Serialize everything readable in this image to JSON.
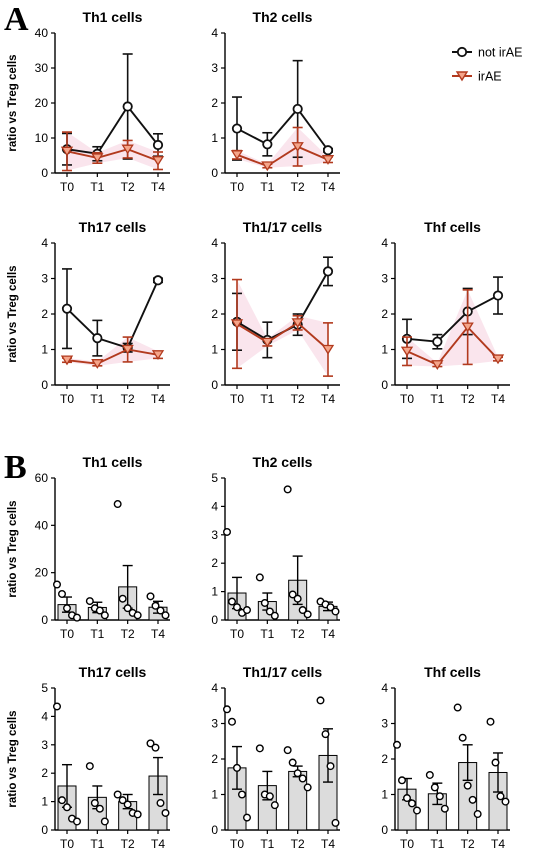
{
  "panels": {
    "A": "A",
    "B": "B"
  },
  "legend": {
    "series": [
      {
        "name": "not irAE",
        "color": "#111111",
        "marker": "circle"
      },
      {
        "name": "irAE",
        "color": "#b23a1e",
        "marker": "triangle-down"
      }
    ]
  },
  "colors": {
    "not_irAE": "#111111",
    "irAE": "#b23a1e",
    "irAE_band": "#f3c6d6",
    "bar_fill": "#dcdcdc"
  },
  "chart_data": [
    {
      "panel": "A",
      "type": "line",
      "title": "Th1 cells",
      "ylabel": "ratio vs Treg cells",
      "categories": [
        "T0",
        "T1",
        "T2",
        "T4"
      ],
      "ylim": [
        0,
        40
      ],
      "yticks": [
        0,
        10,
        20,
        30,
        40
      ],
      "series": [
        {
          "name": "not irAE",
          "values": [
            6.8,
            5.5,
            19,
            8
          ],
          "err": [
            4.5,
            2,
            15,
            3.2
          ]
        },
        {
          "name": "irAE",
          "values": [
            6.2,
            4.3,
            6.8,
            3.5
          ],
          "err": [
            5.5,
            1.5,
            2.5,
            2.5
          ]
        }
      ]
    },
    {
      "panel": "A",
      "type": "line",
      "title": "Th2 cells",
      "ylabel": "",
      "categories": [
        "T0",
        "T1",
        "T2",
        "T4"
      ],
      "ylim": [
        0,
        4
      ],
      "yticks": [
        0,
        1,
        2,
        3,
        4
      ],
      "series": [
        {
          "name": "not irAE",
          "values": [
            1.27,
            0.82,
            1.83,
            0.65
          ],
          "err": [
            0.9,
            0.33,
            1.38,
            0.05
          ]
        },
        {
          "name": "irAE",
          "values": [
            0.52,
            0.2,
            0.75,
            0.38
          ],
          "err": [
            0.12,
            0.05,
            0.55,
            0.08
          ]
        }
      ]
    },
    {
      "panel": "A",
      "type": "line",
      "title": "Th17 cells",
      "ylabel": "ratio vs Treg cells",
      "categories": [
        "T0",
        "T1",
        "T2",
        "T4"
      ],
      "ylim": [
        0,
        4
      ],
      "yticks": [
        0,
        1,
        2,
        3,
        4
      ],
      "series": [
        {
          "name": "not irAE",
          "values": [
            2.15,
            1.32,
            1.05,
            2.95
          ],
          "err": [
            1.12,
            0.5,
            0.12,
            0.06
          ]
        },
        {
          "name": "irAE",
          "values": [
            0.7,
            0.6,
            1.0,
            0.85
          ],
          "err": [
            0.06,
            0.06,
            0.35,
            0.1
          ]
        }
      ]
    },
    {
      "panel": "A",
      "type": "line",
      "title": "Th1/17 cells",
      "ylabel": "",
      "categories": [
        "T0",
        "T1",
        "T2",
        "T4"
      ],
      "ylim": [
        0,
        4
      ],
      "yticks": [
        0,
        1,
        2,
        3,
        4
      ],
      "series": [
        {
          "name": "not irAE",
          "values": [
            1.78,
            1.27,
            1.7,
            3.2
          ],
          "err": [
            0.8,
            0.5,
            0.3,
            0.4
          ]
        },
        {
          "name": "irAE",
          "values": [
            1.72,
            1.2,
            1.75,
            1.0
          ],
          "err": [
            1.25,
            0.1,
            0.2,
            0.75
          ]
        }
      ]
    },
    {
      "panel": "A",
      "type": "line",
      "title": "Thf cells",
      "ylabel": "",
      "categories": [
        "T0",
        "T1",
        "T2",
        "T4"
      ],
      "ylim": [
        0,
        4
      ],
      "yticks": [
        0,
        1,
        2,
        3,
        4
      ],
      "series": [
        {
          "name": "not irAE",
          "values": [
            1.3,
            1.22,
            2.07,
            2.52
          ],
          "err": [
            0.55,
            0.2,
            0.65,
            0.52
          ]
        },
        {
          "name": "irAE",
          "values": [
            0.95,
            0.57,
            1.63,
            0.73
          ],
          "err": [
            0.4,
            0.05,
            1.05,
            0.05
          ]
        }
      ]
    },
    {
      "panel": "B",
      "type": "bar",
      "title": "Th1 cells",
      "ylabel": "ratio vs Treg cells",
      "categories": [
        "T0",
        "T1",
        "T2",
        "T4"
      ],
      "ylim": [
        0,
        60
      ],
      "yticks": [
        0,
        20,
        40,
        60
      ],
      "values": [
        6.5,
        5.3,
        14,
        5.4
      ],
      "err": [
        3.2,
        2.2,
        9,
        2.5
      ],
      "points": [
        [
          15,
          11,
          5,
          2,
          1
        ],
        [
          8,
          5,
          4,
          2
        ],
        [
          49,
          9,
          5,
          3,
          2
        ],
        [
          10,
          6,
          4,
          2
        ]
      ]
    },
    {
      "panel": "B",
      "type": "bar",
      "title": "Th2 cells",
      "ylabel": "",
      "categories": [
        "T0",
        "T1",
        "T2",
        "T4"
      ],
      "ylim": [
        0,
        5
      ],
      "yticks": [
        0,
        1,
        2,
        3,
        4,
        5
      ],
      "values": [
        0.95,
        0.65,
        1.4,
        0.48
      ],
      "err": [
        0.55,
        0.3,
        0.85,
        0.15
      ],
      "points": [
        [
          3.1,
          0.65,
          0.45,
          0.25,
          0.35
        ],
        [
          1.5,
          0.6,
          0.3,
          0.15
        ],
        [
          4.6,
          0.9,
          0.75,
          0.35,
          0.2
        ],
        [
          0.65,
          0.55,
          0.45,
          0.3
        ]
      ]
    },
    {
      "panel": "B",
      "type": "bar",
      "title": "Th17 cells",
      "ylabel": "ratio vs Treg cells",
      "categories": [
        "T0",
        "T1",
        "T2",
        "T4"
      ],
      "ylim": [
        0,
        5
      ],
      "yticks": [
        0,
        1,
        2,
        3,
        4,
        5
      ],
      "values": [
        1.55,
        1.15,
        1.0,
        1.9
      ],
      "err": [
        0.75,
        0.4,
        0.25,
        0.65
      ],
      "points": [
        [
          4.35,
          1.05,
          0.8,
          0.4,
          0.3
        ],
        [
          2.25,
          0.95,
          0.75,
          0.3
        ],
        [
          1.25,
          1.05,
          0.9,
          0.6,
          0.55
        ],
        [
          3.05,
          2.9,
          0.95,
          0.6
        ]
      ]
    },
    {
      "panel": "B",
      "type": "bar",
      "title": "Th1/17 cells",
      "ylabel": "",
      "categories": [
        "T0",
        "T1",
        "T2",
        "T4"
      ],
      "ylim": [
        0,
        4
      ],
      "yticks": [
        0,
        1,
        2,
        3,
        4
      ],
      "values": [
        1.75,
        1.25,
        1.65,
        2.1
      ],
      "err": [
        0.6,
        0.4,
        0.15,
        0.75
      ],
      "points": [
        [
          3.4,
          3.05,
          1.75,
          1.0,
          0.35
        ],
        [
          2.3,
          1.0,
          0.95,
          0.7
        ],
        [
          2.25,
          1.9,
          1.6,
          1.45,
          1.2
        ],
        [
          3.65,
          2.7,
          1.8,
          0.2
        ]
      ]
    },
    {
      "panel": "B",
      "type": "bar",
      "title": "Thf cells",
      "ylabel": "",
      "categories": [
        "T0",
        "T1",
        "T2",
        "T4"
      ],
      "ylim": [
        0,
        4
      ],
      "yticks": [
        0,
        1,
        2,
        3,
        4
      ],
      "values": [
        1.15,
        1.02,
        1.9,
        1.62
      ],
      "err": [
        0.3,
        0.3,
        0.5,
        0.55
      ],
      "points": [
        [
          2.4,
          1.4,
          0.9,
          0.75,
          0.55
        ],
        [
          1.55,
          1.2,
          0.95,
          0.6
        ],
        [
          3.45,
          2.6,
          1.25,
          0.85,
          0.45
        ],
        [
          3.05,
          1.9,
          0.95,
          0.8
        ]
      ]
    }
  ]
}
